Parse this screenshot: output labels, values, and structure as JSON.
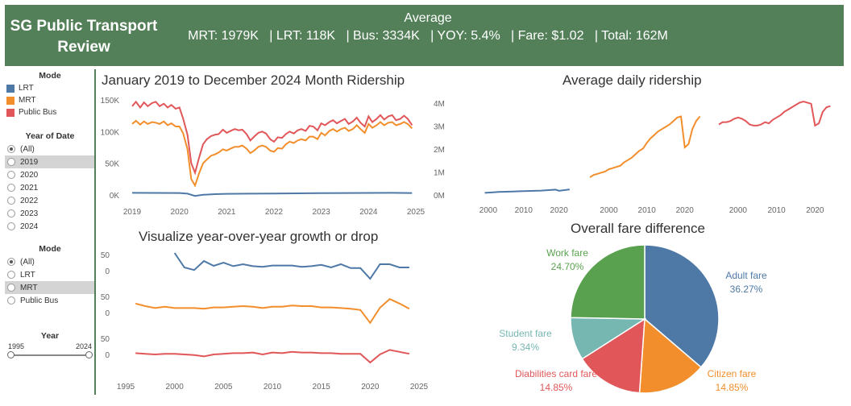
{
  "header": {
    "title": "SG Public Transport Review",
    "avg_label": "Average",
    "stats": [
      "MRT: 1979K",
      "| LRT: 118K",
      "| Bus: 3334K",
      "| YOY: 5.4%",
      "| Fare: $1.02",
      "| Total: 162M"
    ]
  },
  "colors": {
    "lrt": "#4e79a7",
    "mrt": "#f28e2b",
    "bus": "#e15759",
    "header": "#548059"
  },
  "sidebar": {
    "legend_title": "Mode",
    "legend": [
      {
        "label": "LRT",
        "color": "#4e79a7"
      },
      {
        "label": "MRT",
        "color": "#f28e2b"
      },
      {
        "label": "Public Bus",
        "color": "#e15759"
      }
    ],
    "year_filter_title": "Year of Date",
    "year_options": [
      "(All)",
      "2019",
      "2020",
      "2021",
      "2022",
      "2023",
      "2024"
    ],
    "year_selected_index": 0,
    "year_highlight_index": 1,
    "mode_filter_title": "Mode",
    "mode_options": [
      "(All)",
      "LRT",
      "MRT",
      "Public Bus"
    ],
    "mode_selected_index": 0,
    "mode_highlight_index": 2,
    "slider_title": "Year",
    "slider_min": "1995",
    "slider_max": "2024"
  },
  "charts": {
    "monthly_title": "January 2019 to December 2024 Month Ridership",
    "daily_title": "Average daily ridership",
    "yoy_title": "Visualize year-over-year growth or drop",
    "fare_title": "Overall fare difference"
  },
  "chart_data": [
    {
      "type": "line",
      "name": "monthly",
      "x_ticks": [
        "2019",
        "2020",
        "2021",
        "2022",
        "2023",
        "2024",
        "2025"
      ],
      "left_ticks": [
        "150K",
        "100K",
        "50K",
        "0K"
      ],
      "right_ticks": [
        "4M",
        "3M",
        "2M",
        "1M",
        "0M"
      ],
      "left_ylim": [
        0,
        150000
      ],
      "right_ylim": [
        0,
        4000000
      ],
      "xlim": [
        2019,
        2025
      ],
      "series": [
        {
          "key": "bus",
          "x": [
            2019.0,
            2019.08,
            2019.17,
            2019.25,
            2019.33,
            2019.42,
            2019.5,
            2019.58,
            2019.67,
            2019.75,
            2019.83,
            2019.92,
            2020.0,
            2020.08,
            2020.17,
            2020.25,
            2020.33,
            2020.42,
            2020.5,
            2020.58,
            2020.67,
            2020.75,
            2020.83,
            2020.92,
            2021.0,
            2021.08,
            2021.17,
            2021.25,
            2021.33,
            2021.42,
            2021.5,
            2021.58,
            2021.67,
            2021.75,
            2021.83,
            2021.92,
            2022.0,
            2022.08,
            2022.17,
            2022.25,
            2022.33,
            2022.42,
            2022.5,
            2022.58,
            2022.67,
            2022.75,
            2022.83,
            2022.92,
            2023.0,
            2023.08,
            2023.17,
            2023.25,
            2023.33,
            2023.42,
            2023.5,
            2023.58,
            2023.67,
            2023.75,
            2023.83,
            2023.92,
            2024.0,
            2024.08,
            2024.17,
            2024.25,
            2024.33,
            2024.42,
            2024.5,
            2024.58,
            2024.67,
            2024.75,
            2024.83,
            2024.92
          ],
          "y": [
            140000,
            147000,
            138000,
            146000,
            140000,
            145000,
            147000,
            140000,
            144000,
            138000,
            142000,
            136000,
            138000,
            120000,
            95000,
            50000,
            35000,
            60000,
            80000,
            88000,
            93000,
            95000,
            96000,
            103000,
            98000,
            101000,
            104000,
            102000,
            103000,
            96000,
            86000,
            92000,
            98000,
            100000,
            97000,
            88000,
            84000,
            91000,
            90000,
            96000,
            100000,
            97000,
            102000,
            104000,
            101000,
            109000,
            108000,
            102000,
            113000,
            110000,
            115000,
            118000,
            113000,
            117000,
            120000,
            112000,
            116000,
            122000,
            114000,
            108000,
            124000,
            115000,
            120000,
            126000,
            119000,
            124000,
            126000,
            118000,
            120000,
            125000,
            120000,
            110000
          ]
        },
        {
          "key": "mrt",
          "x": [
            2019.0,
            2019.08,
            2019.17,
            2019.25,
            2019.33,
            2019.42,
            2019.5,
            2019.58,
            2019.67,
            2019.75,
            2019.83,
            2019.92,
            2020.0,
            2020.08,
            2020.17,
            2020.25,
            2020.33,
            2020.42,
            2020.5,
            2020.58,
            2020.67,
            2020.75,
            2020.83,
            2020.92,
            2021.0,
            2021.08,
            2021.17,
            2021.25,
            2021.33,
            2021.42,
            2021.5,
            2021.58,
            2021.67,
            2021.75,
            2021.83,
            2021.92,
            2022.0,
            2022.08,
            2022.17,
            2022.25,
            2022.33,
            2022.42,
            2022.5,
            2022.58,
            2022.67,
            2022.75,
            2022.83,
            2022.92,
            2023.0,
            2023.08,
            2023.17,
            2023.25,
            2023.33,
            2023.42,
            2023.5,
            2023.58,
            2023.67,
            2023.75,
            2023.83,
            2023.92,
            2024.0,
            2024.08,
            2024.17,
            2024.25,
            2024.33,
            2024.42,
            2024.5,
            2024.58,
            2024.67,
            2024.75,
            2024.83,
            2024.92
          ],
          "y": [
            112000,
            117000,
            111000,
            116000,
            112000,
            115000,
            114000,
            112000,
            116000,
            110000,
            113000,
            108000,
            108000,
            97000,
            72000,
            25000,
            15000,
            35000,
            50000,
            56000,
            62000,
            64000,
            67000,
            72000,
            70000,
            73000,
            76000,
            76000,
            78000,
            73000,
            66000,
            70000,
            76000,
            78000,
            76000,
            70000,
            68000,
            74000,
            73000,
            80000,
            84000,
            82000,
            86000,
            88000,
            86000,
            92000,
            92000,
            88000,
            98000,
            94000,
            101000,
            104000,
            100000,
            104000,
            106000,
            101000,
            104000,
            110000,
            104000,
            98000,
            112000,
            106000,
            110000,
            115000,
            110000,
            114000,
            115000,
            110000,
            112000,
            115000,
            112000,
            105000
          ]
        },
        {
          "key": "lrt",
          "x": [
            2019.0,
            2019.5,
            2020.0,
            2020.17,
            2020.33,
            2020.5,
            2020.75,
            2021.0,
            2021.5,
            2022.0,
            2022.5,
            2023.0,
            2023.5,
            2024.0,
            2024.5,
            2024.92
          ],
          "y": [
            115000,
            112000,
            110000,
            90000,
            20000,
            55000,
            75000,
            85000,
            90000,
            95000,
            100000,
            105000,
            110000,
            112000,
            115000,
            110000
          ]
        }
      ]
    },
    {
      "type": "line",
      "name": "average-daily",
      "panels": [
        {
          "key": "lrt",
          "x_ticks": [
            "2000",
            "2010",
            "2020"
          ],
          "xlim": [
            1995,
            2026
          ],
          "ylim": [
            0,
            4000
          ],
          "x": [
            1999,
            2001,
            2003,
            2005,
            2007,
            2009,
            2011,
            2013,
            2015,
            2017,
            2019,
            2020,
            2022,
            2023
          ],
          "y": [
            20,
            40,
            60,
            70,
            80,
            90,
            100,
            110,
            120,
            140,
            160,
            110,
            150,
            170
          ]
        },
        {
          "key": "mrt",
          "x_ticks": [
            "2000",
            "2010",
            "2020"
          ],
          "xlim": [
            1995,
            2026
          ],
          "ylim": [
            0,
            4000
          ],
          "x": [
            1995,
            1996,
            1997,
            1998,
            1999,
            2000,
            2001,
            2002,
            2003,
            2004,
            2005,
            2006,
            2007,
            2008,
            2009,
            2010,
            2011,
            2012,
            2013,
            2014,
            2015,
            2016,
            2017,
            2018,
            2019,
            2020,
            2021,
            2022,
            2023,
            2024
          ],
          "y": [
            700,
            800,
            850,
            900,
            950,
            1050,
            1100,
            1150,
            1200,
            1350,
            1450,
            1550,
            1700,
            1850,
            1950,
            2200,
            2400,
            2550,
            2700,
            2800,
            2900,
            3000,
            3150,
            3300,
            3350,
            2000,
            2150,
            2800,
            3150,
            3350
          ]
        },
        {
          "key": "bus",
          "x_ticks": [
            "2000",
            "2010",
            "2020"
          ],
          "xlim": [
            1995,
            2026
          ],
          "ylim": [
            0,
            4000
          ],
          "x": [
            1995,
            1996,
            1997,
            1998,
            1999,
            2000,
            2001,
            2002,
            2003,
            2004,
            2005,
            2006,
            2007,
            2008,
            2009,
            2010,
            2011,
            2012,
            2013,
            2014,
            2015,
            2016,
            2017,
            2018,
            2019,
            2020,
            2021,
            2022,
            2023,
            2024
          ],
          "y": [
            3000,
            3100,
            3100,
            3150,
            3250,
            3300,
            3250,
            3150,
            3000,
            2950,
            2950,
            3000,
            3100,
            3050,
            3200,
            3300,
            3400,
            3550,
            3650,
            3750,
            3850,
            3950,
            4000,
            3950,
            3900,
            2950,
            3050,
            3550,
            3750,
            3800
          ]
        }
      ]
    },
    {
      "type": "line",
      "name": "yoy-growth",
      "x_ticks": [
        "1995",
        "2000",
        "2005",
        "2010",
        "2015",
        "2020",
        "2025"
      ],
      "y_ticks": [
        "50",
        "0"
      ],
      "xlim": [
        1995,
        2025
      ],
      "series": [
        {
          "key": "lrt",
          "ylim": [
            -40,
            60
          ],
          "x": [
            2000,
            2001,
            2002,
            2003,
            2004,
            2005,
            2006,
            2007,
            2008,
            2009,
            2010,
            2011,
            2012,
            2013,
            2014,
            2015,
            2016,
            2017,
            2018,
            2019,
            2020,
            2021,
            2022,
            2023,
            2024
          ],
          "y": [
            55,
            10,
            2,
            30,
            15,
            25,
            14,
            20,
            14,
            12,
            16,
            16,
            16,
            12,
            14,
            18,
            10,
            20,
            8,
            8,
            -25,
            20,
            20,
            10,
            10
          ]
        },
        {
          "key": "mrt",
          "ylim": [
            -40,
            60
          ],
          "x": [
            1996,
            1997,
            1998,
            1999,
            2000,
            2001,
            2002,
            2003,
            2004,
            2005,
            2006,
            2007,
            2008,
            2009,
            2010,
            2011,
            2012,
            2013,
            2014,
            2015,
            2016,
            2017,
            2018,
            2019,
            2020,
            2021,
            2022,
            2023,
            2024
          ],
          "y": [
            28,
            20,
            14,
            18,
            14,
            14,
            14,
            12,
            16,
            16,
            18,
            20,
            18,
            14,
            18,
            18,
            22,
            20,
            20,
            16,
            16,
            14,
            12,
            8,
            -32,
            15,
            42,
            28,
            12
          ]
        },
        {
          "key": "bus",
          "ylim": [
            -40,
            60
          ],
          "x": [
            1996,
            1997,
            1998,
            1999,
            2000,
            2001,
            2002,
            2003,
            2004,
            2005,
            2006,
            2007,
            2008,
            2009,
            2010,
            2011,
            2012,
            2013,
            2014,
            2015,
            2016,
            2017,
            2018,
            2019,
            2020,
            2021,
            2022,
            2023,
            2024
          ],
          "y": [
            4,
            2,
            0,
            2,
            2,
            0,
            -2,
            -6,
            0,
            2,
            4,
            4,
            6,
            0,
            6,
            4,
            8,
            6,
            6,
            4,
            4,
            2,
            2,
            2,
            -25,
            0,
            14,
            8,
            2
          ]
        }
      ]
    },
    {
      "type": "pie",
      "name": "fare-difference",
      "slices": [
        {
          "label": "Adult fare",
          "value": 36.27,
          "pct": "36.27%",
          "color": "#4e79a7"
        },
        {
          "label": "Citizen fare",
          "value": 14.85,
          "pct": "14.85%",
          "color": "#f28e2b"
        },
        {
          "label": "Diabilities card fare",
          "value": 14.85,
          "pct": "14.85%",
          "color": "#e15759"
        },
        {
          "label": "Student fare",
          "value": 9.34,
          "pct": "9.34%",
          "color": "#76b7b2"
        },
        {
          "label": "Work fare",
          "value": 24.7,
          "pct": "24.70%",
          "color": "#59a14f"
        }
      ]
    }
  ]
}
